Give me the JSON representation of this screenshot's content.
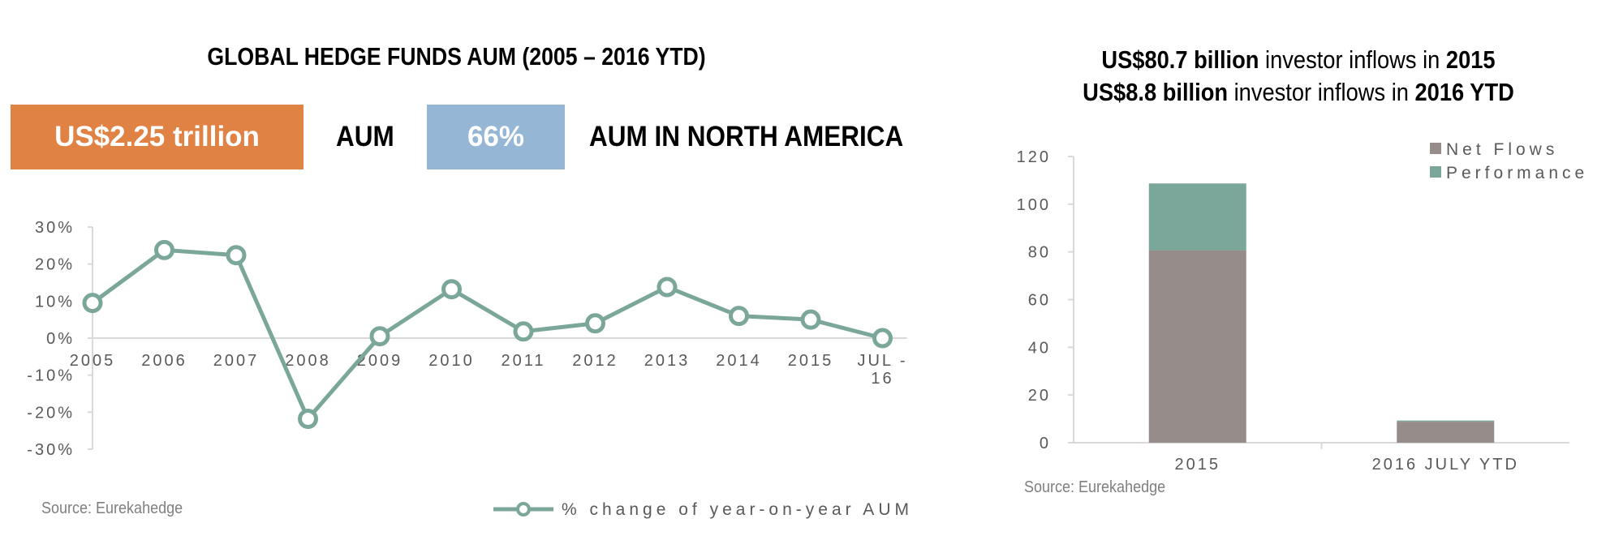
{
  "left_panel": {
    "title": "GLOBAL HEDGE FUNDS AUM (2005 – 2016 YTD)",
    "aum_value": "US$2.25 trillion",
    "aum_label": "AUM",
    "na_value": "66%",
    "na_label": "AUM IN NORTH AMERICA",
    "source": "Source: Eurekahedge",
    "colors": {
      "aum_box": "#df8244",
      "na_box": "#95b6d5",
      "line": "#7ba69a",
      "negative_tick": "#ff0000"
    }
  },
  "right_panel": {
    "title_line1": {
      "bold1": "US$80.7 billion",
      "text1": " investor inflows in ",
      "bold2": "2015"
    },
    "title_line2": {
      "bold1": "US$8.8 billion",
      "text1": " investor inflows in ",
      "bold2": "2016 YTD"
    },
    "source": "Source: Eurekahedge",
    "colors": {
      "net_flows": "#968c89",
      "performance": "#7ba69a"
    }
  },
  "chart_data": [
    {
      "type": "line",
      "title": "GLOBAL HEDGE FUNDS AUM (2005 – 2016 YTD)",
      "categories": [
        "2005",
        "2006",
        "2007",
        "2008",
        "2009",
        "2010",
        "2011",
        "2012",
        "2013",
        "2014",
        "2015",
        "JUL - 16"
      ],
      "category_labels": [
        [
          "2005"
        ],
        [
          "2006"
        ],
        [
          "2007"
        ],
        [
          "2008"
        ],
        [
          "2009"
        ],
        [
          "2010"
        ],
        [
          "2011"
        ],
        [
          "2012"
        ],
        [
          "2013"
        ],
        [
          "2014"
        ],
        [
          "2015"
        ],
        [
          "JUL -",
          "16"
        ]
      ],
      "series": [
        {
          "name": "% change of year-on-year AUM",
          "values": [
            9.5,
            23.8,
            22.4,
            -21.8,
            0.5,
            13.2,
            1.8,
            4.0,
            13.8,
            6.0,
            5.0,
            0.0
          ]
        }
      ],
      "ylim": [
        -30,
        30
      ],
      "yticks": [
        30,
        20,
        10,
        0,
        -10,
        -20,
        -30
      ],
      "ytick_labels": [
        "30%",
        "20%",
        "10%",
        "0%",
        "-10%",
        "-20%",
        "-30%"
      ],
      "legend": "bottom-right",
      "grid": false
    },
    {
      "type": "bar",
      "stacked": true,
      "categories": [
        "2015",
        "2016 JULY YTD"
      ],
      "series": [
        {
          "name": "Net Flows",
          "values": [
            80.7,
            8.8
          ]
        },
        {
          "name": "Performance",
          "values": [
            28.0,
            0.5
          ]
        }
      ],
      "ylim": [
        0,
        120
      ],
      "yticks": [
        0,
        20,
        40,
        60,
        80,
        100,
        120
      ],
      "ytick_labels": [
        "0",
        "20",
        "40",
        "60",
        "80",
        "100",
        "120"
      ],
      "legend": "top-right",
      "grid": false
    }
  ]
}
